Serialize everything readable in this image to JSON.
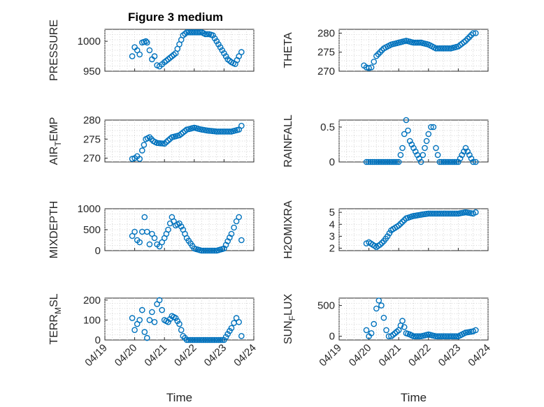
{
  "figure_title": "Figure 3 medium",
  "colors": {
    "marker": "#0072BD",
    "axes": "#262626",
    "background": "#ffffff"
  },
  "chart_data": [
    {
      "type": "scatter",
      "title": "Figure 3 medium",
      "xlabel": "",
      "ylabel": "PRESSURE",
      "ylim": [
        950,
        1020
      ],
      "yticks": [
        950,
        1000
      ],
      "ytick_labels": [
        "950",
        "1000"
      ],
      "xlim": [
        "04/19",
        "04/24"
      ],
      "x": [
        "04/19 22:00",
        "04/20 00:00",
        "04/20 02:00",
        "04/20 04:00",
        "04/20 06:00",
        "04/20 09:00",
        "04/20 10:00",
        "04/20 12:00",
        "04/20 14:00",
        "04/20 16:00",
        "04/20 18:00",
        "04/20 20:00",
        "04/21 00:00",
        "04/21 03:00",
        "04/21 06:00",
        "04/21 09:00",
        "04/21 12:00",
        "04/21 15:00",
        "04/21 18:00",
        "04/21 21:00",
        "04/22 00:00",
        "04/22 03:00",
        "04/22 06:00",
        "04/22 09:00",
        "04/22 12:00",
        "04/22 15:00",
        "04/22 18:00",
        "04/22 21:00",
        "04/23 00:00",
        "04/23 03:00",
        "04/23 06:00",
        "04/23 09:00",
        "04/23 12:00",
        "04/23 14:00"
      ],
      "y": [
        975,
        990,
        985,
        978,
        998,
        1000,
        998,
        985,
        970,
        975,
        960,
        958,
        965,
        970,
        975,
        980,
        995,
        1010,
        1015,
        1015,
        1015,
        1015,
        1015,
        1012,
        1012,
        1010,
        1000,
        990,
        980,
        970,
        965,
        962,
        975,
        982
      ],
      "grid": true,
      "marker": "circle"
    },
    {
      "type": "scatter",
      "xlabel": "",
      "ylabel": "THETA",
      "ylim": [
        270,
        281
      ],
      "yticks": [
        270,
        275,
        280
      ],
      "ytick_labels": [
        "270",
        "275",
        "280"
      ],
      "xlim": [
        "04/19",
        "04/24"
      ],
      "x": [
        "04/19 20:00",
        "04/19 22:00",
        "04/20 00:00",
        "04/20 02:00",
        "04/20 04:00",
        "04/20 06:00",
        "04/20 09:00",
        "04/20 12:00",
        "04/20 15:00",
        "04/20 18:00",
        "04/21 00:00",
        "04/21 06:00",
        "04/21 12:00",
        "04/21 18:00",
        "04/22 00:00",
        "04/22 06:00",
        "04/22 12:00",
        "04/22 18:00",
        "04/23 00:00",
        "04/23 06:00",
        "04/23 12:00",
        "04/23 14:00"
      ],
      "y": [
        271.5,
        271,
        270.8,
        271,
        272.5,
        274,
        275,
        276,
        276.5,
        277,
        277.5,
        278,
        277.5,
        277.5,
        277,
        276,
        276,
        276,
        276.5,
        278,
        280,
        280
      ],
      "grid": true,
      "marker": "circle"
    },
    {
      "type": "scatter",
      "xlabel": "",
      "ylabel": "AIR_TEMP",
      "ylim": [
        269,
        280
      ],
      "yticks": [
        270,
        275,
        280
      ],
      "ytick_labels": [
        "270",
        "275",
        "280"
      ],
      "xlim": [
        "04/19",
        "04/24"
      ],
      "x": [
        "04/19 22:00",
        "04/20 00:00",
        "04/20 02:00",
        "04/20 04:00",
        "04/20 06:00",
        "04/20 09:00",
        "04/20 12:00",
        "04/20 15:00",
        "04/20 18:00",
        "04/21 00:00",
        "04/21 06:00",
        "04/21 12:00",
        "04/21 18:00",
        "04/22 00:00",
        "04/22 06:00",
        "04/22 12:00",
        "04/22 18:00",
        "04/23 00:00",
        "04/23 06:00",
        "04/23 12:00",
        "04/23 14:00"
      ],
      "y": [
        269.8,
        270,
        270.5,
        269.8,
        272,
        275,
        275.5,
        274.5,
        274,
        273.8,
        275.5,
        276,
        277.5,
        278,
        277.5,
        277.2,
        277,
        277,
        277,
        277.5,
        278.5
      ],
      "grid": true,
      "marker": "circle"
    },
    {
      "type": "scatter",
      "xlabel": "",
      "ylabel": "RAINFALL",
      "ylim": [
        0,
        0.6
      ],
      "yticks": [
        0,
        0.5
      ],
      "ytick_labels": [
        "0",
        "0.5"
      ],
      "xlim": [
        "04/19",
        "04/24"
      ],
      "x": [
        "04/19 22:00",
        "04/20 06:00",
        "04/20 12:00",
        "04/20 18:00",
        "04/21 00:00",
        "04/21 03:00",
        "04/21 06:00",
        "04/21 09:00",
        "04/21 12:00",
        "04/21 18:00",
        "04/22 00:00",
        "04/22 02:00",
        "04/22 04:00",
        "04/22 06:00",
        "04/22 09:00",
        "04/22 12:00",
        "04/22 18:00",
        "04/23 00:00",
        "04/23 06:00",
        "04/23 12:00",
        "04/23 14:00"
      ],
      "y": [
        0,
        0,
        0,
        0,
        0,
        0.2,
        0.6,
        0.3,
        0.2,
        0,
        0.4,
        0.5,
        0.5,
        0.2,
        0,
        0,
        0,
        0,
        0.2,
        0,
        0
      ],
      "grid": true,
      "marker": "circle"
    },
    {
      "type": "scatter",
      "xlabel": "",
      "ylabel": "MIXDEPTH",
      "ylim": [
        0,
        1000
      ],
      "yticks": [
        0,
        500,
        1000
      ],
      "ytick_labels": [
        "0",
        "500",
        "1000"
      ],
      "xlim": [
        "04/19",
        "04/24"
      ],
      "x": [
        "04/19 22:00",
        "04/20 00:00",
        "04/20 02:00",
        "04/20 04:00",
        "04/20 06:00",
        "04/20 08:00",
        "04/20 10:00",
        "04/20 12:00",
        "04/20 14:00",
        "04/20 16:00",
        "04/20 18:00",
        "04/20 20:00",
        "04/21 00:00",
        "04/21 03:00",
        "04/21 06:00",
        "04/21 09:00",
        "04/21 12:00",
        "04/21 15:00",
        "04/21 18:00",
        "04/22 00:00",
        "04/22 06:00",
        "04/22 12:00",
        "04/22 18:00",
        "04/23 00:00",
        "04/23 06:00",
        "04/23 10:00",
        "04/23 12:00",
        "04/23 14:00"
      ],
      "y": [
        350,
        450,
        250,
        200,
        450,
        800,
        450,
        150,
        400,
        300,
        150,
        100,
        300,
        500,
        800,
        600,
        650,
        500,
        300,
        50,
        0,
        0,
        0,
        50,
        400,
        700,
        800,
        250
      ],
      "grid": true,
      "marker": "circle"
    },
    {
      "type": "scatter",
      "xlabel": "",
      "ylabel": "H2OMIXRA",
      "ylim": [
        1.8,
        5.3
      ],
      "yticks": [
        2,
        3,
        4,
        5
      ],
      "ytick_labels": [
        "2",
        "3",
        "4",
        "5"
      ],
      "xlim": [
        "04/19",
        "04/24"
      ],
      "x": [
        "04/19 22:00",
        "04/20 00:00",
        "04/20 03:00",
        "04/20 06:00",
        "04/20 09:00",
        "04/20 12:00",
        "04/20 15:00",
        "04/20 18:00",
        "04/21 00:00",
        "04/21 03:00",
        "04/21 06:00",
        "04/21 09:00",
        "04/21 12:00",
        "04/21 18:00",
        "04/22 00:00",
        "04/22 06:00",
        "04/22 12:00",
        "04/22 18:00",
        "04/23 00:00",
        "04/23 06:00",
        "04/23 12:00",
        "04/23 14:00"
      ],
      "y": [
        2.4,
        2.5,
        2.3,
        2.1,
        2.3,
        2.6,
        3,
        3.5,
        3.9,
        4.2,
        4.5,
        4.6,
        4.7,
        4.8,
        4.9,
        4.9,
        4.9,
        4.9,
        4.9,
        5,
        4.9,
        5
      ],
      "grid": true,
      "marker": "circle"
    },
    {
      "type": "scatter",
      "xlabel": "Time",
      "ylabel": "TERR_MSL",
      "ylim": [
        0,
        210
      ],
      "yticks": [
        0,
        100,
        200
      ],
      "ytick_labels": [
        "0",
        "100",
        "200"
      ],
      "xlim": [
        "04/19",
        "04/24"
      ],
      "xticks": [
        "04/19",
        "04/20",
        "04/21",
        "04/22",
        "04/23",
        "04/24"
      ],
      "x": [
        "04/19 22:00",
        "04/20 00:00",
        "04/20 02:00",
        "04/20 04:00",
        "04/20 06:00",
        "04/20 08:00",
        "04/20 10:00",
        "04/20 12:00",
        "04/20 14:00",
        "04/20 16:00",
        "04/20 18:00",
        "04/20 20:00",
        "04/21 00:00",
        "04/21 03:00",
        "04/21 06:00",
        "04/21 09:00",
        "04/21 12:00",
        "04/21 15:00",
        "04/21 18:00",
        "04/22 00:00",
        "04/22 06:00",
        "04/22 12:00",
        "04/22 18:00",
        "04/23 00:00",
        "04/23 06:00",
        "04/23 10:00",
        "04/23 12:00",
        "04/23 14:00"
      ],
      "y": [
        110,
        50,
        80,
        100,
        150,
        40,
        10,
        100,
        140,
        90,
        180,
        200,
        100,
        90,
        120,
        110,
        80,
        20,
        0,
        0,
        0,
        0,
        0,
        0,
        60,
        110,
        90,
        20
      ],
      "grid": true,
      "marker": "circle"
    },
    {
      "type": "scatter",
      "xlabel": "Time",
      "ylabel": "SUN_FLUX",
      "ylim": [
        -60,
        620
      ],
      "yticks": [
        0,
        500
      ],
      "ytick_labels": [
        "0",
        "500"
      ],
      "xlim": [
        "04/19",
        "04/24"
      ],
      "xticks": [
        "04/19",
        "04/20",
        "04/21",
        "04/22",
        "04/23",
        "04/24"
      ],
      "x": [
        "04/19 22:00",
        "04/20 00:00",
        "04/20 02:00",
        "04/20 04:00",
        "04/20 06:00",
        "04/20 08:00",
        "04/20 10:00",
        "04/20 12:00",
        "04/20 14:00",
        "04/20 16:00",
        "04/20 18:00",
        "04/21 00:00",
        "04/21 03:00",
        "04/21 06:00",
        "04/21 09:00",
        "04/21 12:00",
        "04/21 18:00",
        "04/22 00:00",
        "04/22 06:00",
        "04/22 12:00",
        "04/22 18:00",
        "04/23 00:00",
        "04/23 06:00",
        "04/23 12:00",
        "04/23 14:00"
      ],
      "y": [
        100,
        0,
        50,
        200,
        450,
        580,
        500,
        300,
        100,
        0,
        0,
        100,
        250,
        50,
        30,
        0,
        0,
        30,
        0,
        0,
        0,
        0,
        60,
        80,
        100
      ],
      "grid": true,
      "marker": "circle"
    }
  ]
}
